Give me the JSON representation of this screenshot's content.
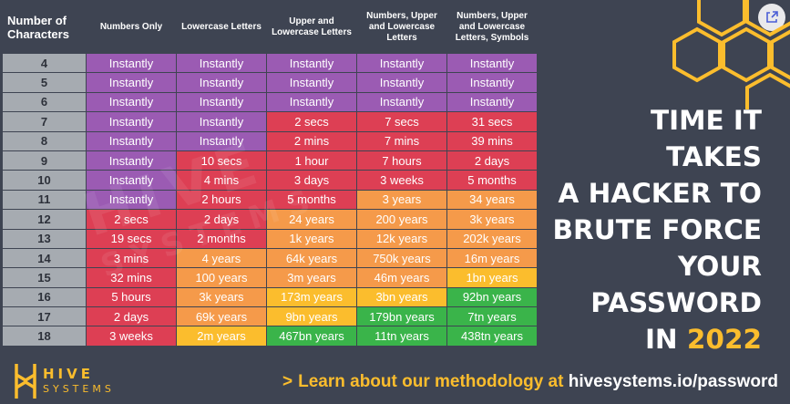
{
  "header": {
    "characters_label": "Number of Characters",
    "columns": [
      "Numbers Only",
      "Lowercase Letters",
      "Upper and Lowercase Letters",
      "Numbers, Upper and Lowercase Letters",
      "Numbers, Upper and Lowercase Letters, Symbols"
    ]
  },
  "rows": [
    {
      "n": "4",
      "cells": [
        "Instantly",
        "Instantly",
        "Instantly",
        "Instantly",
        "Instantly"
      ],
      "colors": [
        "purple",
        "purple",
        "purple",
        "purple",
        "purple"
      ]
    },
    {
      "n": "5",
      "cells": [
        "Instantly",
        "Instantly",
        "Instantly",
        "Instantly",
        "Instantly"
      ],
      "colors": [
        "purple",
        "purple",
        "purple",
        "purple",
        "purple"
      ]
    },
    {
      "n": "6",
      "cells": [
        "Instantly",
        "Instantly",
        "Instantly",
        "Instantly",
        "Instantly"
      ],
      "colors": [
        "purple",
        "purple",
        "purple",
        "purple",
        "purple"
      ]
    },
    {
      "n": "7",
      "cells": [
        "Instantly",
        "Instantly",
        "2 secs",
        "7 secs",
        "31 secs"
      ],
      "colors": [
        "purple",
        "purple",
        "red",
        "red",
        "red"
      ]
    },
    {
      "n": "8",
      "cells": [
        "Instantly",
        "Instantly",
        "2 mins",
        "7 mins",
        "39 mins"
      ],
      "colors": [
        "purple",
        "purple",
        "red",
        "red",
        "red"
      ]
    },
    {
      "n": "9",
      "cells": [
        "Instantly",
        "10 secs",
        "1 hour",
        "7 hours",
        "2 days"
      ],
      "colors": [
        "purple",
        "red",
        "red",
        "red",
        "red"
      ]
    },
    {
      "n": "10",
      "cells": [
        "Instantly",
        "4 mins",
        "3 days",
        "3 weeks",
        "5 months"
      ],
      "colors": [
        "purple",
        "red",
        "red",
        "red",
        "red"
      ]
    },
    {
      "n": "11",
      "cells": [
        "Instantly",
        "2 hours",
        "5 months",
        "3 years",
        "34 years"
      ],
      "colors": [
        "purple",
        "red",
        "red",
        "orange",
        "orange"
      ]
    },
    {
      "n": "12",
      "cells": [
        "2 secs",
        "2 days",
        "24 years",
        "200 years",
        "3k years"
      ],
      "colors": [
        "red",
        "red",
        "orange",
        "orange",
        "orange"
      ]
    },
    {
      "n": "13",
      "cells": [
        "19 secs",
        "2 months",
        "1k years",
        "12k years",
        "202k years"
      ],
      "colors": [
        "red",
        "red",
        "orange",
        "orange",
        "orange"
      ]
    },
    {
      "n": "14",
      "cells": [
        "3 mins",
        "4 years",
        "64k years",
        "750k years",
        "16m years"
      ],
      "colors": [
        "red",
        "orange",
        "orange",
        "orange",
        "orange"
      ]
    },
    {
      "n": "15",
      "cells": [
        "32 mins",
        "100 years",
        "3m years",
        "46m years",
        "1bn years"
      ],
      "colors": [
        "red",
        "orange",
        "orange",
        "orange",
        "yellow"
      ]
    },
    {
      "n": "16",
      "cells": [
        "5 hours",
        "3k years",
        "173m years",
        "3bn years",
        "92bn years"
      ],
      "colors": [
        "red",
        "orange",
        "yellow",
        "yellow",
        "green"
      ]
    },
    {
      "n": "17",
      "cells": [
        "2 days",
        "69k years",
        "9bn years",
        "179bn years",
        "7tn years"
      ],
      "colors": [
        "red",
        "orange",
        "yellow",
        "green",
        "green"
      ]
    },
    {
      "n": "18",
      "cells": [
        "3 weeks",
        "2m years",
        "467bn years",
        "11tn years",
        "438tn years"
      ],
      "colors": [
        "red",
        "yellow",
        "green",
        "green",
        "green"
      ]
    }
  ],
  "title": {
    "lines": [
      "TIME IT TAKES",
      "A HACKER TO",
      "BRUTE FORCE",
      "YOUR",
      "PASSWORD"
    ],
    "last_prefix": "IN ",
    "year": "2022"
  },
  "logo": {
    "word": "HIVE",
    "word2": "SYSTEMS"
  },
  "watermark": {
    "line1": "HIVE",
    "line2": "SYSTEMS"
  },
  "footer": {
    "chevron": ">",
    "lead": "Learn about our methodology at",
    "url": "hivesystems.io/password"
  },
  "colors": {
    "purple": "#9b5bb3",
    "red": "#dd3f54",
    "orange": "#f59a4a",
    "yellow": "#fbbd2d",
    "green": "#3ab44a",
    "background": "#3e4452",
    "accent": "#fbbd2d"
  },
  "icons": {
    "share": "share-icon",
    "honeycomb": "honeycomb-icon",
    "logo": "hive-logo-icon"
  }
}
